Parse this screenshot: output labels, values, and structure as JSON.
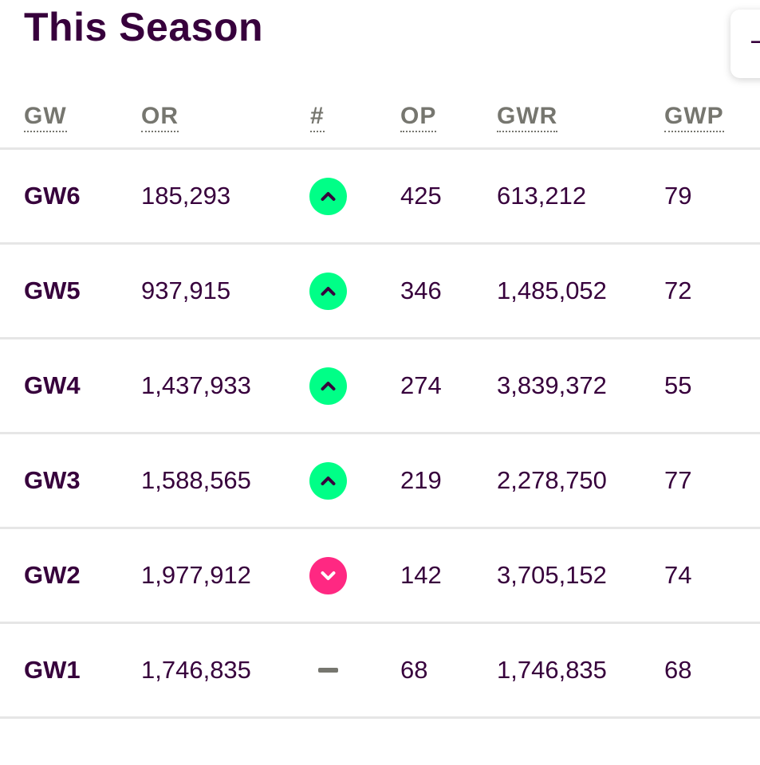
{
  "title": "This Season",
  "columns": [
    "GW",
    "OR",
    "#",
    "OP",
    "GWR",
    "GWP"
  ],
  "colors": {
    "text": "#37003c",
    "header": "#76766f",
    "up": "#00ff87",
    "down": "#ff2882",
    "same": "#76766f"
  },
  "rows": [
    {
      "gw": "GW6",
      "or": "185,293",
      "move": "up",
      "move_icon": "chevron-up-icon",
      "op": "425",
      "gwr": "613,212",
      "gwp": "79"
    },
    {
      "gw": "GW5",
      "or": "937,915",
      "move": "up",
      "move_icon": "chevron-up-icon",
      "op": "346",
      "gwr": "1,485,052",
      "gwp": "72"
    },
    {
      "gw": "GW4",
      "or": "1,437,933",
      "move": "up",
      "move_icon": "chevron-up-icon",
      "op": "274",
      "gwr": "3,839,372",
      "gwp": "55"
    },
    {
      "gw": "GW3",
      "or": "1,588,565",
      "move": "up",
      "move_icon": "chevron-up-icon",
      "op": "219",
      "gwr": "2,278,750",
      "gwp": "77"
    },
    {
      "gw": "GW2",
      "or": "1,977,912",
      "move": "down",
      "move_icon": "chevron-down-icon",
      "op": "142",
      "gwr": "3,705,152",
      "gwp": "74"
    },
    {
      "gw": "GW1",
      "or": "1,746,835",
      "move": "same",
      "move_icon": "dash-icon",
      "op": "68",
      "gwr": "1,746,835",
      "gwp": "68"
    }
  ]
}
